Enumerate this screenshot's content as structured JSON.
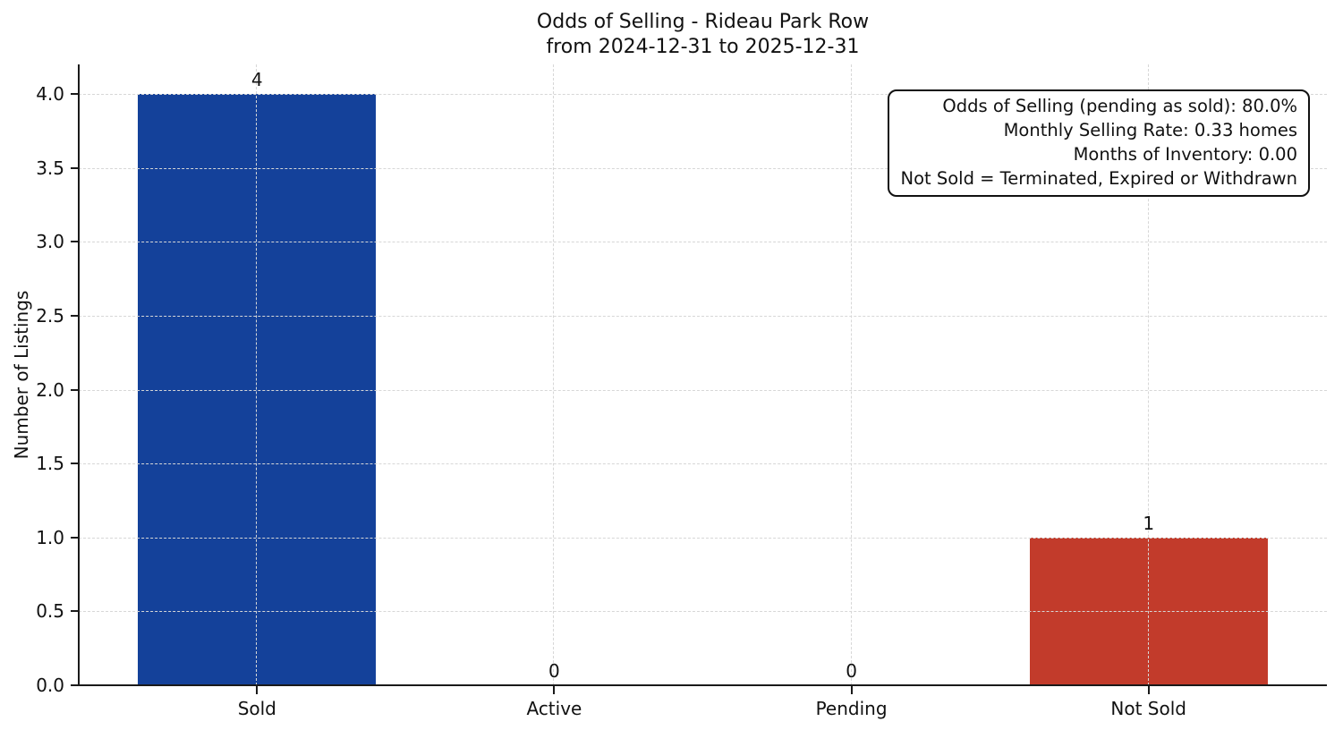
{
  "chart_data": {
    "type": "bar",
    "title": "Odds of Selling - Rideau Park Row",
    "subtitle": "from 2024-12-31 to 2025-12-31",
    "categories": [
      "Sold",
      "Active",
      "Pending",
      "Not Sold"
    ],
    "values": [
      4,
      0,
      0,
      1
    ],
    "value_labels": [
      "4",
      "0",
      "0",
      "1"
    ],
    "bar_colors": [
      "#14419a",
      null,
      null,
      "#c23b2b"
    ],
    "xlabel": "",
    "ylabel": "Number of Listings",
    "ylim": [
      0,
      4.2
    ],
    "yticks": [
      0,
      0.5,
      1,
      1.5,
      2,
      2.5,
      3,
      3.5,
      4
    ],
    "ytick_labels": [
      "0.0",
      "0.5",
      "1.0",
      "1.5",
      "2.0",
      "2.5",
      "3.0",
      "3.5",
      "4.0"
    ],
    "grid": {
      "horizontal": true,
      "vertical": true,
      "style": "dashed",
      "color": "#d7d7d7"
    },
    "legend": null,
    "annotation": {
      "position": "top-right",
      "align": "right",
      "lines": [
        "Odds of Selling (pending as sold): 80.0%",
        "Monthly Selling Rate: 0.33 homes",
        "Months of Inventory: 0.00",
        "Not Sold = Terminated, Expired or Withdrawn"
      ]
    },
    "colors": {
      "axis": "#1a1a1a",
      "grid": "#d7d7d7",
      "background": "#ffffff",
      "text": "#111111"
    }
  }
}
